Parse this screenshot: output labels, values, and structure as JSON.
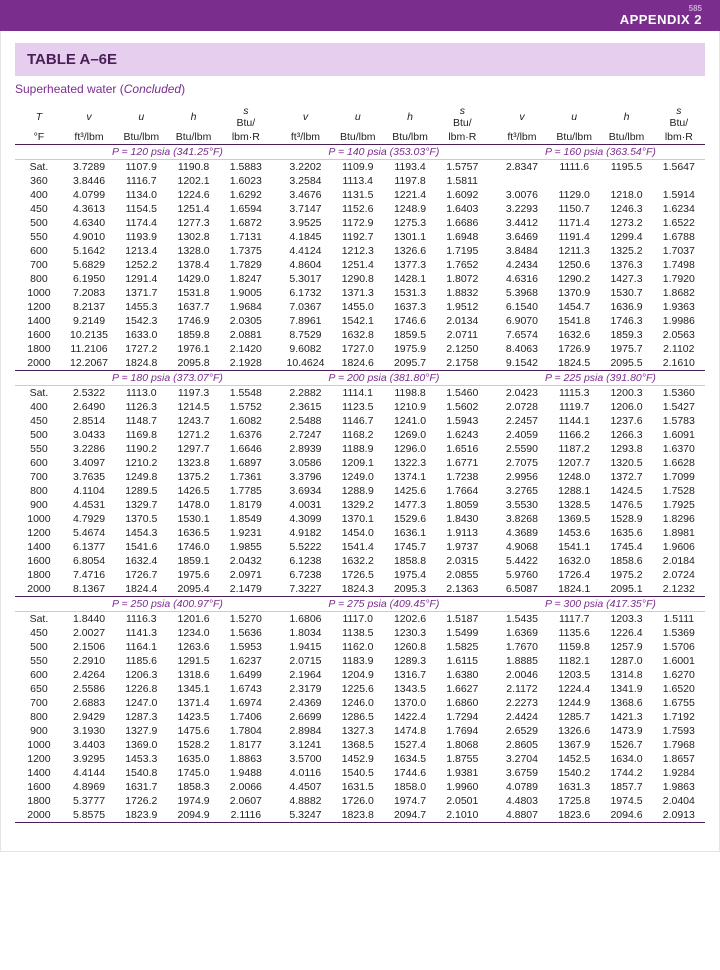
{
  "page": {
    "appendix_label": "APPENDIX 2",
    "page_number": "585",
    "table_title": "TABLE A–6E",
    "subtitle": "Superheated water (Concluded)"
  },
  "columns": {
    "temp_sym": "T",
    "temp_unit": "°F",
    "v_sym": "v",
    "v_unit": "ft³/lbm",
    "u_sym": "u",
    "u_unit": "Btu/lbm",
    "h_sym": "h",
    "h_unit": "Btu/lbm",
    "s_sym": "s",
    "s_unit_top": "Btu/",
    "s_unit_bot": "lbm·R"
  },
  "groups": [
    {
      "pressures": [
        "P = 120 psia (341.25°F)",
        "P = 140 psia (353.03°F)",
        "P = 160 psia (363.54°F)"
      ],
      "temps": [
        "Sat.",
        "360",
        "400",
        "450",
        "500",
        "550",
        "600",
        "700",
        "800",
        "1000",
        "1200",
        "1400",
        "1600",
        "1800",
        "2000"
      ],
      "block1": [
        [
          "3.7289",
          "1107.9",
          "1190.8",
          "1.5883"
        ],
        [
          "3.8446",
          "1116.7",
          "1202.1",
          "1.6023"
        ],
        [
          "4.0799",
          "1134.0",
          "1224.6",
          "1.6292"
        ],
        [
          "4.3613",
          "1154.5",
          "1251.4",
          "1.6594"
        ],
        [
          "4.6340",
          "1174.4",
          "1277.3",
          "1.6872"
        ],
        [
          "4.9010",
          "1193.9",
          "1302.8",
          "1.7131"
        ],
        [
          "5.1642",
          "1213.4",
          "1328.0",
          "1.7375"
        ],
        [
          "5.6829",
          "1252.2",
          "1378.4",
          "1.7829"
        ],
        [
          "6.1950",
          "1291.4",
          "1429.0",
          "1.8247"
        ],
        [
          "7.2083",
          "1371.7",
          "1531.8",
          "1.9005"
        ],
        [
          "8.2137",
          "1455.3",
          "1637.7",
          "1.9684"
        ],
        [
          "9.2149",
          "1542.3",
          "1746.9",
          "2.0305"
        ],
        [
          "10.2135",
          "1633.0",
          "1859.8",
          "2.0881"
        ],
        [
          "11.2106",
          "1727.2",
          "1976.1",
          "2.1420"
        ],
        [
          "12.2067",
          "1824.8",
          "2095.8",
          "2.1928"
        ]
      ],
      "block2": [
        [
          "3.2202",
          "1109.9",
          "1193.4",
          "1.5757"
        ],
        [
          "3.2584",
          "1113.4",
          "1197.8",
          "1.5811"
        ],
        [
          "3.4676",
          "1131.5",
          "1221.4",
          "1.6092"
        ],
        [
          "3.7147",
          "1152.6",
          "1248.9",
          "1.6403"
        ],
        [
          "3.9525",
          "1172.9",
          "1275.3",
          "1.6686"
        ],
        [
          "4.1845",
          "1192.7",
          "1301.1",
          "1.6948"
        ],
        [
          "4.4124",
          "1212.3",
          "1326.6",
          "1.7195"
        ],
        [
          "4.8604",
          "1251.4",
          "1377.3",
          "1.7652"
        ],
        [
          "5.3017",
          "1290.8",
          "1428.1",
          "1.8072"
        ],
        [
          "6.1732",
          "1371.3",
          "1531.3",
          "1.8832"
        ],
        [
          "7.0367",
          "1455.0",
          "1637.3",
          "1.9512"
        ],
        [
          "7.8961",
          "1542.1",
          "1746.6",
          "2.0134"
        ],
        [
          "8.7529",
          "1632.8",
          "1859.5",
          "2.0711"
        ],
        [
          "9.6082",
          "1727.0",
          "1975.9",
          "2.1250"
        ],
        [
          "10.4624",
          "1824.6",
          "2095.7",
          "2.1758"
        ]
      ],
      "block3": [
        [
          "2.8347",
          "1111.6",
          "1195.5",
          "1.5647"
        ],
        [
          "",
          "",
          "",
          ""
        ],
        [
          "3.0076",
          "1129.0",
          "1218.0",
          "1.5914"
        ],
        [
          "3.2293",
          "1150.7",
          "1246.3",
          "1.6234"
        ],
        [
          "3.4412",
          "1171.4",
          "1273.2",
          "1.6522"
        ],
        [
          "3.6469",
          "1191.4",
          "1299.4",
          "1.6788"
        ],
        [
          "3.8484",
          "1211.3",
          "1325.2",
          "1.7037"
        ],
        [
          "4.2434",
          "1250.6",
          "1376.3",
          "1.7498"
        ],
        [
          "4.6316",
          "1290.2",
          "1427.3",
          "1.7920"
        ],
        [
          "5.3968",
          "1370.9",
          "1530.7",
          "1.8682"
        ],
        [
          "6.1540",
          "1454.7",
          "1636.9",
          "1.9363"
        ],
        [
          "6.9070",
          "1541.8",
          "1746.3",
          "1.9986"
        ],
        [
          "7.6574",
          "1632.6",
          "1859.3",
          "2.0563"
        ],
        [
          "8.4063",
          "1726.9",
          "1975.7",
          "2.1102"
        ],
        [
          "9.1542",
          "1824.5",
          "2095.5",
          "2.1610"
        ]
      ]
    },
    {
      "pressures": [
        "P = 180 psia (373.07°F)",
        "P = 200 psia (381.80°F)",
        "P = 225 psia (391.80°F)"
      ],
      "temps": [
        "Sat.",
        "400",
        "450",
        "500",
        "550",
        "600",
        "700",
        "800",
        "900",
        "1000",
        "1200",
        "1400",
        "1600",
        "1800",
        "2000"
      ],
      "block1": [
        [
          "2.5322",
          "1113.0",
          "1197.3",
          "1.5548"
        ],
        [
          "2.6490",
          "1126.3",
          "1214.5",
          "1.5752"
        ],
        [
          "2.8514",
          "1148.7",
          "1243.7",
          "1.6082"
        ],
        [
          "3.0433",
          "1169.8",
          "1271.2",
          "1.6376"
        ],
        [
          "3.2286",
          "1190.2",
          "1297.7",
          "1.6646"
        ],
        [
          "3.4097",
          "1210.2",
          "1323.8",
          "1.6897"
        ],
        [
          "3.7635",
          "1249.8",
          "1375.2",
          "1.7361"
        ],
        [
          "4.1104",
          "1289.5",
          "1426.5",
          "1.7785"
        ],
        [
          "4.4531",
          "1329.7",
          "1478.0",
          "1.8179"
        ],
        [
          "4.7929",
          "1370.5",
          "1530.1",
          "1.8549"
        ],
        [
          "5.4674",
          "1454.3",
          "1636.5",
          "1.9231"
        ],
        [
          "6.1377",
          "1541.6",
          "1746.0",
          "1.9855"
        ],
        [
          "6.8054",
          "1632.4",
          "1859.1",
          "2.0432"
        ],
        [
          "7.4716",
          "1726.7",
          "1975.6",
          "2.0971"
        ],
        [
          "8.1367",
          "1824.4",
          "2095.4",
          "2.1479"
        ]
      ],
      "block2": [
        [
          "2.2882",
          "1114.1",
          "1198.8",
          "1.5460"
        ],
        [
          "2.3615",
          "1123.5",
          "1210.9",
          "1.5602"
        ],
        [
          "2.5488",
          "1146.7",
          "1241.0",
          "1.5943"
        ],
        [
          "2.7247",
          "1168.2",
          "1269.0",
          "1.6243"
        ],
        [
          "2.8939",
          "1188.9",
          "1296.0",
          "1.6516"
        ],
        [
          "3.0586",
          "1209.1",
          "1322.3",
          "1.6771"
        ],
        [
          "3.3796",
          "1249.0",
          "1374.1",
          "1.7238"
        ],
        [
          "3.6934",
          "1288.9",
          "1425.6",
          "1.7664"
        ],
        [
          "4.0031",
          "1329.2",
          "1477.3",
          "1.8059"
        ],
        [
          "4.3099",
          "1370.1",
          "1529.6",
          "1.8430"
        ],
        [
          "4.9182",
          "1454.0",
          "1636.1",
          "1.9113"
        ],
        [
          "5.5222",
          "1541.4",
          "1745.7",
          "1.9737"
        ],
        [
          "6.1238",
          "1632.2",
          "1858.8",
          "2.0315"
        ],
        [
          "6.7238",
          "1726.5",
          "1975.4",
          "2.0855"
        ],
        [
          "7.3227",
          "1824.3",
          "2095.3",
          "2.1363"
        ]
      ],
      "block3": [
        [
          "2.0423",
          "1115.3",
          "1200.3",
          "1.5360"
        ],
        [
          "2.0728",
          "1119.7",
          "1206.0",
          "1.5427"
        ],
        [
          "2.2457",
          "1144.1",
          "1237.6",
          "1.5783"
        ],
        [
          "2.4059",
          "1166.2",
          "1266.3",
          "1.6091"
        ],
        [
          "2.5590",
          "1187.2",
          "1293.8",
          "1.6370"
        ],
        [
          "2.7075",
          "1207.7",
          "1320.5",
          "1.6628"
        ],
        [
          "2.9956",
          "1248.0",
          "1372.7",
          "1.7099"
        ],
        [
          "3.2765",
          "1288.1",
          "1424.5",
          "1.7528"
        ],
        [
          "3.5530",
          "1328.5",
          "1476.5",
          "1.7925"
        ],
        [
          "3.8268",
          "1369.5",
          "1528.9",
          "1.8296"
        ],
        [
          "4.3689",
          "1453.6",
          "1635.6",
          "1.8981"
        ],
        [
          "4.9068",
          "1541.1",
          "1745.4",
          "1.9606"
        ],
        [
          "5.4422",
          "1632.0",
          "1858.6",
          "2.0184"
        ],
        [
          "5.9760",
          "1726.4",
          "1975.2",
          "2.0724"
        ],
        [
          "6.5087",
          "1824.1",
          "2095.1",
          "2.1232"
        ]
      ]
    },
    {
      "pressures": [
        "P = 250 psia (400.97°F)",
        "P = 275 psia (409.45°F)",
        "P = 300 psia (417.35°F)"
      ],
      "temps": [
        "Sat.",
        "450",
        "500",
        "550",
        "600",
        "650",
        "700",
        "800",
        "900",
        "1000",
        "1200",
        "1400",
        "1600",
        "1800",
        "2000"
      ],
      "block1": [
        [
          "1.8440",
          "1116.3",
          "1201.6",
          "1.5270"
        ],
        [
          "2.0027",
          "1141.3",
          "1234.0",
          "1.5636"
        ],
        [
          "2.1506",
          "1164.1",
          "1263.6",
          "1.5953"
        ],
        [
          "2.2910",
          "1185.6",
          "1291.5",
          "1.6237"
        ],
        [
          "2.4264",
          "1206.3",
          "1318.6",
          "1.6499"
        ],
        [
          "2.5586",
          "1226.8",
          "1345.1",
          "1.6743"
        ],
        [
          "2.6883",
          "1247.0",
          "1371.4",
          "1.6974"
        ],
        [
          "2.9429",
          "1287.3",
          "1423.5",
          "1.7406"
        ],
        [
          "3.1930",
          "1327.9",
          "1475.6",
          "1.7804"
        ],
        [
          "3.4403",
          "1369.0",
          "1528.2",
          "1.8177"
        ],
        [
          "3.9295",
          "1453.3",
          "1635.0",
          "1.8863"
        ],
        [
          "4.4144",
          "1540.8",
          "1745.0",
          "1.9488"
        ],
        [
          "4.8969",
          "1631.7",
          "1858.3",
          "2.0066"
        ],
        [
          "5.3777",
          "1726.2",
          "1974.9",
          "2.0607"
        ],
        [
          "5.8575",
          "1823.9",
          "2094.9",
          "2.1116"
        ]
      ],
      "block2": [
        [
          "1.6806",
          "1117.0",
          "1202.6",
          "1.5187"
        ],
        [
          "1.8034",
          "1138.5",
          "1230.3",
          "1.5499"
        ],
        [
          "1.9415",
          "1162.0",
          "1260.8",
          "1.5825"
        ],
        [
          "2.0715",
          "1183.9",
          "1289.3",
          "1.6115"
        ],
        [
          "2.1964",
          "1204.9",
          "1316.7",
          "1.6380"
        ],
        [
          "2.3179",
          "1225.6",
          "1343.5",
          "1.6627"
        ],
        [
          "2.4369",
          "1246.0",
          "1370.0",
          "1.6860"
        ],
        [
          "2.6699",
          "1286.5",
          "1422.4",
          "1.7294"
        ],
        [
          "2.8984",
          "1327.3",
          "1474.8",
          "1.7694"
        ],
        [
          "3.1241",
          "1368.5",
          "1527.4",
          "1.8068"
        ],
        [
          "3.5700",
          "1452.9",
          "1634.5",
          "1.8755"
        ],
        [
          "4.0116",
          "1540.5",
          "1744.6",
          "1.9381"
        ],
        [
          "4.4507",
          "1631.5",
          "1858.0",
          "1.9960"
        ],
        [
          "4.8882",
          "1726.0",
          "1974.7",
          "2.0501"
        ],
        [
          "5.3247",
          "1823.8",
          "2094.7",
          "2.1010"
        ]
      ],
      "block3": [
        [
          "1.5435",
          "1117.7",
          "1203.3",
          "1.5111"
        ],
        [
          "1.6369",
          "1135.6",
          "1226.4",
          "1.5369"
        ],
        [
          "1.7670",
          "1159.8",
          "1257.9",
          "1.5706"
        ],
        [
          "1.8885",
          "1182.1",
          "1287.0",
          "1.6001"
        ],
        [
          "2.0046",
          "1203.5",
          "1314.8",
          "1.6270"
        ],
        [
          "2.1172",
          "1224.4",
          "1341.9",
          "1.6520"
        ],
        [
          "2.2273",
          "1244.9",
          "1368.6",
          "1.6755"
        ],
        [
          "2.4424",
          "1285.7",
          "1421.3",
          "1.7192"
        ],
        [
          "2.6529",
          "1326.6",
          "1473.9",
          "1.7593"
        ],
        [
          "2.8605",
          "1367.9",
          "1526.7",
          "1.7968"
        ],
        [
          "3.2704",
          "1452.5",
          "1634.0",
          "1.8657"
        ],
        [
          "3.6759",
          "1540.2",
          "1744.2",
          "1.9284"
        ],
        [
          "4.0789",
          "1631.3",
          "1857.7",
          "1.9863"
        ],
        [
          "4.4803",
          "1725.8",
          "1974.5",
          "2.0404"
        ],
        [
          "4.8807",
          "1823.6",
          "2094.6",
          "2.0913"
        ]
      ]
    }
  ]
}
